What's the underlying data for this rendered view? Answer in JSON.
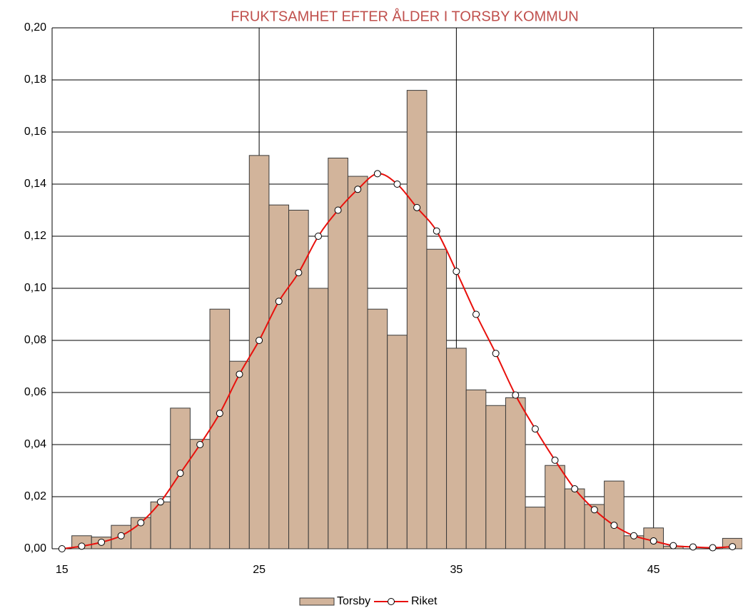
{
  "chart_data": {
    "type": "bar_line",
    "title": "FRUKTSAMHET EFTER ÅLDER I TORSBY KOMMUN",
    "x": [
      15,
      16,
      17,
      18,
      19,
      20,
      21,
      22,
      23,
      24,
      25,
      26,
      27,
      28,
      29,
      30,
      31,
      32,
      33,
      34,
      35,
      36,
      37,
      38,
      39,
      40,
      41,
      42,
      43,
      44,
      45,
      46,
      47,
      48,
      49
    ],
    "series": [
      {
        "name": "Torsby",
        "type": "bar",
        "color": "#d2b49b",
        "values": [
          0,
          0.005,
          0.0045,
          0.009,
          0.012,
          0.018,
          0.054,
          0.042,
          0.092,
          0.072,
          0.151,
          0.132,
          0.13,
          0.1,
          0.15,
          0.143,
          0.092,
          0.082,
          0.176,
          0.115,
          0.077,
          0.061,
          0.055,
          0.058,
          0.016,
          0.032,
          0.023,
          0.017,
          0.026,
          0.005,
          0.008,
          0.001,
          0,
          0,
          0.004
        ]
      },
      {
        "name": "Riket",
        "type": "line",
        "color": "#e8100c",
        "values": [
          0,
          0.001,
          0.0025,
          0.005,
          0.01,
          0.018,
          0.029,
          0.04,
          0.052,
          0.067,
          0.08,
          0.095,
          0.106,
          0.12,
          0.13,
          0.138,
          0.144,
          0.14,
          0.131,
          0.122,
          0.1065,
          0.09,
          0.075,
          0.059,
          0.046,
          0.034,
          0.023,
          0.015,
          0.009,
          0.005,
          0.003,
          0.0012,
          0.0007,
          0.0004,
          0.0008
        ]
      }
    ],
    "xlim": [
      14.5,
      49.5
    ],
    "xticks": [
      15,
      25,
      35,
      45
    ],
    "ylim": [
      0,
      0.2
    ],
    "yticks": [
      {
        "value": 0,
        "label": "0,00"
      },
      {
        "value": 0.02,
        "label": "0,02"
      },
      {
        "value": 0.04,
        "label": "0,04"
      },
      {
        "value": 0.06,
        "label": "0,06"
      },
      {
        "value": 0.08,
        "label": "0,08"
      },
      {
        "value": 0.1,
        "label": "0,10"
      },
      {
        "value": 0.12,
        "label": "0,12"
      },
      {
        "value": 0.14,
        "label": "0,14"
      },
      {
        "value": 0.16,
        "label": "0,16"
      },
      {
        "value": 0.18,
        "label": "0,18"
      },
      {
        "value": 0.2,
        "label": "0,20"
      }
    ],
    "grid": true,
    "legend": "bottom"
  }
}
